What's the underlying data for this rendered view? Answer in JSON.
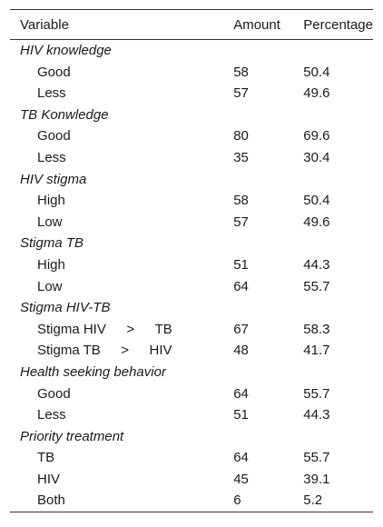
{
  "table": {
    "headers": [
      "Variable",
      "Amount",
      "Percentage"
    ],
    "groups": [
      {
        "title": "HIV knowledge",
        "rows": [
          {
            "label": "Good",
            "amount": "58",
            "percentage": "50.4"
          },
          {
            "label": "Less",
            "amount": "57",
            "percentage": "49.6"
          }
        ]
      },
      {
        "title": "TB Konwledge",
        "rows": [
          {
            "label": "Good",
            "amount": "80",
            "percentage": "69.6"
          },
          {
            "label": "Less",
            "amount": "35",
            "percentage": "30.4"
          }
        ]
      },
      {
        "title": "HIV stigma",
        "rows": [
          {
            "label": "High",
            "amount": "58",
            "percentage": "50.4"
          },
          {
            "label": "Low",
            "amount": "57",
            "percentage": "49.6"
          }
        ]
      },
      {
        "title": "Stigma TB",
        "rows": [
          {
            "label": "High",
            "amount": "51",
            "percentage": "44.3"
          },
          {
            "label": "Low",
            "amount": "64",
            "percentage": "55.7"
          }
        ]
      },
      {
        "title": "Stigma HIV-TB",
        "rows": [
          {
            "label": "Stigma HIV  >  TB",
            "amount": "67",
            "percentage": "58.3"
          },
          {
            "label": "Stigma TB  >  HIV",
            "amount": "48",
            "percentage": "41.7"
          }
        ]
      },
      {
        "title": "Health seeking behavior",
        "rows": [
          {
            "label": "Good",
            "amount": "64",
            "percentage": "55.7"
          },
          {
            "label": "Less",
            "amount": "51",
            "percentage": "44.3"
          }
        ]
      },
      {
        "title": "Priority treatment",
        "rows": [
          {
            "label": "TB",
            "amount": "64",
            "percentage": "55.7"
          },
          {
            "label": "HIV",
            "amount": "45",
            "percentage": "39.1"
          },
          {
            "label": "Both",
            "amount": "6",
            "percentage": "5.2"
          }
        ]
      }
    ]
  }
}
